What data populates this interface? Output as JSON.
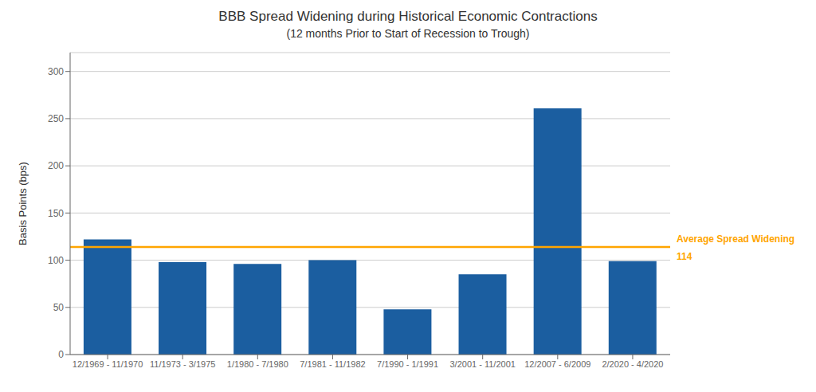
{
  "chart_data": {
    "type": "bar",
    "title": "BBB Spread Widening during Historical Economic Contractions",
    "subtitle": "(12 months Prior to Start of Recession to Trough)",
    "ylabel": "Basis Points (bps)",
    "categories": [
      "12/1969 - 11/1970",
      "11/1973 - 3/1975",
      "1/1980 - 7/1980",
      "7/1981 - 11/1982",
      "7/1990 - 1/1991",
      "3/2001 - 11/2001",
      "12/2007 - 6/2009",
      "2/2020 - 4/2020"
    ],
    "values": [
      122,
      98,
      96,
      100,
      48,
      85,
      261,
      99
    ],
    "color": "#1B5EA0",
    "ylim": [
      0,
      320
    ],
    "yticks": [
      0,
      50,
      100,
      150,
      200,
      250,
      300
    ],
    "grid": true,
    "average_line": {
      "value": 114,
      "color": "#FFA500",
      "annotations": [
        "Average Spread Widening",
        "114"
      ]
    }
  }
}
